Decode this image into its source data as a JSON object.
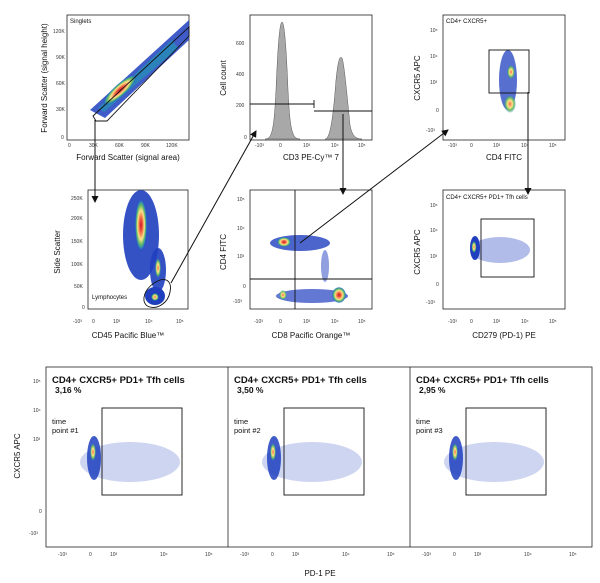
{
  "figure": "flow-cytometry-gating",
  "panels": {
    "singlets": {
      "gate_label": "Singlets",
      "xlabel": "Forward Scatter (signal area)",
      "ylabel": "Forward Scatter (signal height)",
      "xticks": [
        "0",
        "30K",
        "60K",
        "90K",
        "120K"
      ],
      "yticks": [
        "120K",
        "90K",
        "60K",
        "30K",
        "0"
      ]
    },
    "cd3": {
      "xlabel": "CD3 PE-Cy™ 7",
      "ylabel": "Cell count",
      "yticks": [
        "600",
        "400",
        "200",
        "0"
      ],
      "xticks": [
        "-10³",
        "0",
        "10³",
        "10⁴",
        "10⁵"
      ]
    },
    "cxcr5_cd4": {
      "gate_label": "CD4+ CXCR5+",
      "xlabel": "CD4 FITC",
      "ylabel": "CXCR5 APC",
      "xticks": [
        "-10³",
        "0",
        "10³",
        "10⁴",
        "10⁵"
      ],
      "yticks": [
        "10⁵",
        "10⁴",
        "10³",
        "0",
        "-10³"
      ]
    },
    "lymphocytes": {
      "gate_label": "Lymphocytes",
      "xlabel": "CD45 Pacific Blue™",
      "ylabel": "Side Scatter",
      "yticks": [
        "250K",
        "200K",
        "150K",
        "100K",
        "50K",
        "0"
      ],
      "xticks": [
        "-10³",
        "0",
        "10³",
        "10⁴",
        "10⁵"
      ]
    },
    "cd4_cd8": {
      "xlabel": "CD8 Pacific Orange™",
      "ylabel": "CD4 FITC",
      "xticks": [
        "-10³",
        "0",
        "10³",
        "10⁴",
        "10⁵"
      ],
      "yticks": [
        "10⁵",
        "10⁴",
        "10³",
        "0",
        "-10³"
      ]
    },
    "tfh": {
      "gate_label": "CD4+ CXCR5+ PD1+ Tfh cells",
      "xlabel": "CD279 (PD-1) PE",
      "ylabel": "CXCR5 APC",
      "xticks": [
        "-10³",
        "0",
        "10³",
        "10⁴",
        "10⁵"
      ],
      "yticks": [
        "10⁵",
        "10⁴",
        "10³",
        "0",
        "-10³"
      ]
    }
  },
  "timepoints": {
    "ylabel": "CXCR5 APC",
    "xlabel": "PD-1 PE",
    "xticks": [
      "-10³",
      "0",
      "10³",
      "10⁴",
      "10⁵"
    ],
    "yticks": [
      "10⁵",
      "10⁴",
      "10³",
      "0",
      "-10³"
    ],
    "panels": [
      {
        "title": "CD4+ CXCR5+ PD1+ Tfh cells",
        "percent": "3,16 %",
        "tp_line1": "time",
        "tp_line2": "point #1"
      },
      {
        "title": "CD4+ CXCR5+ PD1+ Tfh cells",
        "percent": "3,50 %",
        "tp_line1": "time",
        "tp_line2": "point #2"
      },
      {
        "title": "CD4+ CXCR5+ PD1+ Tfh cells",
        "percent": "2,95 %",
        "tp_line1": "time",
        "tp_line2": "point #3"
      }
    ]
  },
  "colors": {
    "density_high": "#d7191c",
    "density_mid": "#fdae61",
    "density_low": "#2b83ba",
    "density_sparse": "#1f3fbf",
    "histogram_fill": "#a8a8a8"
  }
}
